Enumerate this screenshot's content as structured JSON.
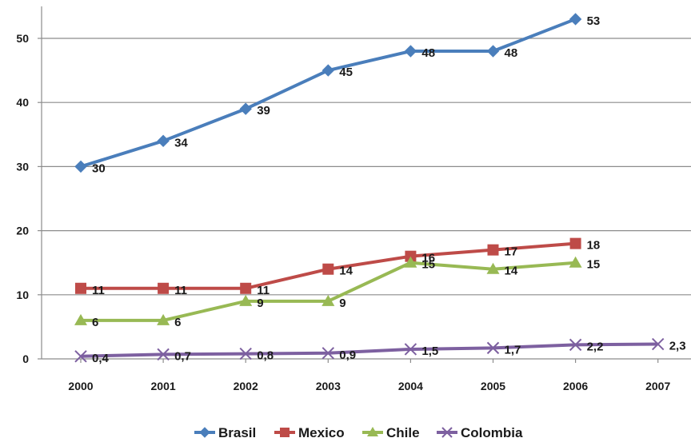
{
  "chart_data": {
    "type": "line",
    "title": "",
    "xlabel": "",
    "ylabel": "",
    "categories": [
      "2000",
      "2001",
      "2002",
      "2003",
      "2004",
      "2005",
      "2006",
      "2007"
    ],
    "ylim": [
      0,
      55
    ],
    "yticks": [
      0,
      10,
      20,
      30,
      40,
      50
    ],
    "grid": "horizontal",
    "legend_position": "bottom",
    "series": [
      {
        "name": "Brasil",
        "color": "#4A7EBB",
        "marker": "diamond",
        "values": [
          30,
          34,
          39,
          45,
          48,
          48,
          53,
          null
        ],
        "labels": [
          "30",
          "34",
          "39",
          "45",
          "48",
          "48",
          "53",
          ""
        ]
      },
      {
        "name": "Mexico",
        "color": "#BE4B48",
        "marker": "square",
        "values": [
          11,
          11,
          11,
          14,
          16,
          17,
          18,
          null
        ],
        "labels": [
          "11",
          "11",
          "11",
          "14",
          "16",
          "17",
          "18",
          ""
        ]
      },
      {
        "name": "Chile",
        "color": "#98B954",
        "marker": "triangle",
        "values": [
          6,
          6,
          9,
          9,
          15,
          14,
          15,
          null
        ],
        "labels": [
          "6",
          "6",
          "9",
          "9",
          "15",
          "14",
          "15",
          ""
        ]
      },
      {
        "name": "Colombia",
        "color": "#7D60A0",
        "marker": "x",
        "values": [
          0.4,
          0.7,
          0.8,
          0.9,
          1.5,
          1.7,
          2.2,
          2.3
        ],
        "labels": [
          "0,4",
          "0,7",
          "0,8",
          "0,9",
          "1,5",
          "1,7",
          "2,2",
          "2,3"
        ]
      }
    ]
  }
}
